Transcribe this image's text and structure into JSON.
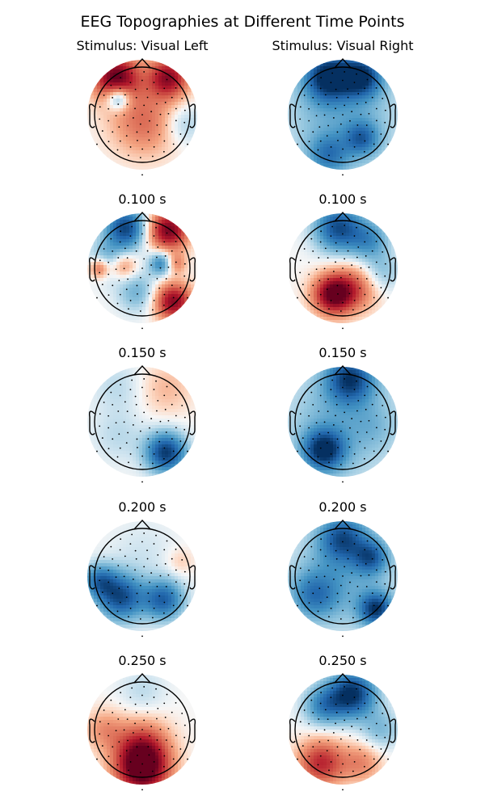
{
  "figure": {
    "title": "EEG Topographies at Different Time Points",
    "columns": [
      "Stimulus: Visual Left",
      "Stimulus: Visual Right"
    ]
  },
  "chart_data": {
    "type": "heatmap",
    "title": "EEG Topographies at Different Time Points",
    "colormap": {
      "negative": "#053061",
      "mid": "#f7f7f7",
      "positive": "#67001f"
    },
    "conditions": [
      "Stimulus: Visual Left",
      "Stimulus: Visual Right"
    ],
    "times": [
      "",
      "0.100 s",
      "0.150 s",
      "0.200 s",
      "0.250 s"
    ],
    "panels": [
      {
        "condition": "Stimulus: Visual Left",
        "time": "",
        "blobs": [
          {
            "x": -0.55,
            "y": 0.78,
            "v": 1.0,
            "s": 0.35
          },
          {
            "x": 0.55,
            "y": 0.78,
            "v": 0.85,
            "s": 0.3
          },
          {
            "x": -0.5,
            "y": 0.35,
            "v": -0.7,
            "s": 0.18
          },
          {
            "x": 0.05,
            "y": -0.15,
            "v": 0.45,
            "s": 0.5
          },
          {
            "x": 0.85,
            "y": -0.2,
            "v": -0.25,
            "s": 0.3
          }
        ]
      },
      {
        "condition": "Stimulus: Visual Right",
        "time": "",
        "blobs": [
          {
            "x": -0.3,
            "y": 0.8,
            "v": -0.95,
            "s": 0.35
          },
          {
            "x": 0.4,
            "y": 0.8,
            "v": -0.85,
            "s": 0.3
          },
          {
            "x": 0.0,
            "y": 0.0,
            "v": -0.35,
            "s": 0.9
          },
          {
            "x": 0.4,
            "y": -0.5,
            "v": -0.55,
            "s": 0.25
          },
          {
            "x": -0.3,
            "y": -0.85,
            "v": -0.5,
            "s": 0.3
          }
        ]
      },
      {
        "condition": "Stimulus: Visual Left",
        "time": "0.100 s",
        "blobs": [
          {
            "x": -0.35,
            "y": 0.85,
            "v": -0.9,
            "s": 0.3
          },
          {
            "x": 0.55,
            "y": 0.8,
            "v": 0.95,
            "s": 0.3
          },
          {
            "x": -0.7,
            "y": 0.2,
            "v": -0.35,
            "s": 0.3
          },
          {
            "x": -0.4,
            "y": 0.05,
            "v": 0.45,
            "s": 0.2
          },
          {
            "x": 0.4,
            "y": 0.1,
            "v": -0.6,
            "s": 0.18
          },
          {
            "x": 0.7,
            "y": 0.1,
            "v": 0.4,
            "s": 0.15
          },
          {
            "x": 0.65,
            "y": -0.7,
            "v": 0.9,
            "s": 0.28
          },
          {
            "x": -0.1,
            "y": -0.5,
            "v": -0.35,
            "s": 0.3
          },
          {
            "x": -0.9,
            "y": 0.0,
            "v": 0.55,
            "s": 0.15
          }
        ]
      },
      {
        "condition": "Stimulus: Visual Right",
        "time": "0.100 s",
        "blobs": [
          {
            "x": -0.1,
            "y": 0.85,
            "v": -0.85,
            "s": 0.35
          },
          {
            "x": 0.55,
            "y": 0.6,
            "v": -0.5,
            "s": 0.3
          },
          {
            "x": -0.2,
            "y": -0.55,
            "v": 1.0,
            "s": 0.3
          },
          {
            "x": 0.3,
            "y": -0.4,
            "v": 0.45,
            "s": 0.35
          },
          {
            "x": 0.8,
            "y": -0.1,
            "v": -0.3,
            "s": 0.3
          }
        ]
      },
      {
        "condition": "Stimulus: Visual Left",
        "time": "0.150 s",
        "blobs": [
          {
            "x": 0.5,
            "y": 0.7,
            "v": 0.2,
            "s": 0.4
          },
          {
            "x": -0.5,
            "y": 0.75,
            "v": -0.15,
            "s": 0.4
          },
          {
            "x": 0.5,
            "y": -0.65,
            "v": -0.95,
            "s": 0.3
          },
          {
            "x": -0.5,
            "y": -0.3,
            "v": -0.15,
            "s": 0.4
          }
        ]
      },
      {
        "condition": "Stimulus: Visual Right",
        "time": "0.150 s",
        "blobs": [
          {
            "x": 0.15,
            "y": 0.9,
            "v": -0.8,
            "s": 0.35
          },
          {
            "x": -0.4,
            "y": -0.6,
            "v": -0.9,
            "s": 0.3
          },
          {
            "x": 0.0,
            "y": 0.0,
            "v": -0.35,
            "s": 0.9
          },
          {
            "x": 0.65,
            "y": -0.1,
            "v": -0.1,
            "s": 0.3
          }
        ]
      },
      {
        "condition": "Stimulus: Visual Left",
        "time": "0.200 s",
        "blobs": [
          {
            "x": -0.45,
            "y": -0.45,
            "v": -0.85,
            "s": 0.35
          },
          {
            "x": 0.45,
            "y": -0.5,
            "v": -0.75,
            "s": 0.3
          },
          {
            "x": -0.9,
            "y": -0.1,
            "v": -0.6,
            "s": 0.25
          },
          {
            "x": 0.8,
            "y": 0.3,
            "v": 0.15,
            "s": 0.2
          },
          {
            "x": 0.0,
            "y": 0.5,
            "v": -0.1,
            "s": 0.5
          }
        ]
      },
      {
        "condition": "Stimulus: Visual Right",
        "time": "0.200 s",
        "blobs": [
          {
            "x": 0.0,
            "y": 0.8,
            "v": -0.7,
            "s": 0.35
          },
          {
            "x": 0.6,
            "y": 0.4,
            "v": -0.6,
            "s": 0.25
          },
          {
            "x": 0.7,
            "y": -0.7,
            "v": -0.85,
            "s": 0.25
          },
          {
            "x": -0.6,
            "y": -0.4,
            "v": -0.5,
            "s": 0.35
          },
          {
            "x": 0.0,
            "y": 0.0,
            "v": -0.35,
            "s": 0.8
          }
        ]
      },
      {
        "condition": "Stimulus: Visual Left",
        "time": "0.250 s",
        "blobs": [
          {
            "x": 0.0,
            "y": -0.85,
            "v": 1.0,
            "s": 0.4
          },
          {
            "x": 0.0,
            "y": -0.35,
            "v": 0.55,
            "s": 0.4
          },
          {
            "x": 0.0,
            "y": 0.8,
            "v": -0.15,
            "s": 0.35
          },
          {
            "x": -0.8,
            "y": 0.0,
            "v": 0.3,
            "s": 0.3
          }
        ]
      },
      {
        "condition": "Stimulus: Visual Right",
        "time": "0.250 s",
        "blobs": [
          {
            "x": 0.2,
            "y": 0.75,
            "v": -1.0,
            "s": 0.35
          },
          {
            "x": -0.4,
            "y": 0.5,
            "v": -0.55,
            "s": 0.3
          },
          {
            "x": -0.45,
            "y": -0.7,
            "v": 0.7,
            "s": 0.35
          },
          {
            "x": 0.4,
            "y": -0.7,
            "v": 0.35,
            "s": 0.3
          },
          {
            "x": 0.8,
            "y": 0.0,
            "v": -0.3,
            "s": 0.3
          }
        ]
      }
    ]
  }
}
